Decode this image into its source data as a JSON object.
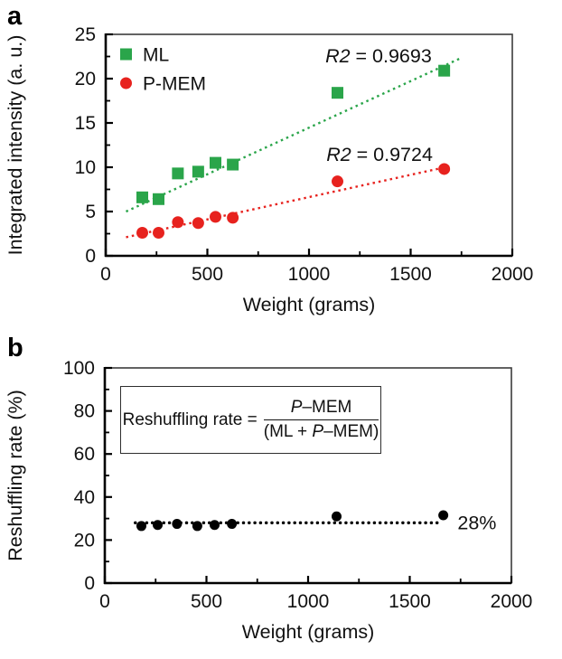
{
  "figure": {
    "background_color": "#ffffff",
    "panels": [
      {
        "label": "a"
      },
      {
        "label": "b"
      }
    ]
  },
  "colors": {
    "ml_green": "#2aa54a",
    "pmem_red": "#e7221e",
    "black": "#000000",
    "plot_border": "#3c3c3c"
  },
  "chart_data": [
    {
      "type": "scatter",
      "panel": "a",
      "title": "",
      "xlabel": "Weight (grams)",
      "ylabel": "Integrated intensity (a. u.)",
      "xlim": [
        0,
        2000
      ],
      "ylim": [
        0,
        25
      ],
      "xticks": [
        0,
        500,
        1000,
        1500,
        2000
      ],
      "xminor": [
        250,
        750,
        1250,
        1750
      ],
      "yticks": [
        0,
        5,
        10,
        15,
        20,
        25
      ],
      "yminor": [
        2.5,
        7.5,
        12.5,
        17.5,
        22.5
      ],
      "grid": false,
      "legend_position": "top-left-inside",
      "x": [
        180,
        260,
        355,
        455,
        540,
        625,
        1140,
        1665
      ],
      "series": [
        {
          "name": "ML",
          "marker": "square",
          "marker_size": 13,
          "color": "#2aa54a",
          "values": [
            6.6,
            6.4,
            9.3,
            9.5,
            10.5,
            10.3,
            18.4,
            20.9
          ],
          "r_squared": 0.9693,
          "trendline": {
            "style": "square-dot",
            "x": [
              100,
              1745
            ],
            "y": [
              5.0,
              22.3
            ]
          }
        },
        {
          "name": "P-MEM",
          "marker": "circle",
          "marker_size": 13,
          "color": "#e7221e",
          "values": [
            2.6,
            2.6,
            3.8,
            3.7,
            4.4,
            4.3,
            8.4,
            9.8
          ],
          "r_squared": 0.9724,
          "trendline": {
            "style": "square-dot",
            "x": [
              100,
              1690
            ],
            "y": [
              2.1,
              10.1
            ]
          }
        }
      ],
      "legend": {
        "entries": [
          "ML",
          "P-MEM"
        ]
      },
      "annotations": [
        {
          "italic": "R2",
          "text": " = 0.9693",
          "x": 1342,
          "y": 22.6,
          "anchor": "middle",
          "color": "#2aa54a"
        },
        {
          "italic": "R2",
          "text": " = 0.9724",
          "x": 1347,
          "y": 11.5,
          "anchor": "middle",
          "color": "#e7221e"
        }
      ]
    },
    {
      "type": "scatter",
      "panel": "b",
      "title": "",
      "xlabel": "Weight (grams)",
      "ylabel": "Reshuffling rate (%)",
      "xlim": [
        0,
        2000
      ],
      "ylim": [
        0,
        100
      ],
      "xticks": [
        0,
        500,
        1000,
        1500,
        2000
      ],
      "xminor": [
        250,
        750,
        1250,
        1750
      ],
      "yticks": [
        0,
        20,
        40,
        60,
        80,
        100
      ],
      "yminor": [
        10,
        30,
        50,
        70,
        90
      ],
      "grid": false,
      "x": [
        180,
        260,
        355,
        455,
        540,
        625,
        1140,
        1665
      ],
      "series": [
        {
          "name": "Reshuffling rate",
          "marker": "circle",
          "marker_size": 11,
          "color": "#000000",
          "values": [
            26.5,
            27,
            27.5,
            26.5,
            27,
            27.5,
            31,
            31.5
          ],
          "trendline": {
            "style": "round-dot",
            "x": [
              150,
              1645
            ],
            "y": [
              28,
              28
            ]
          }
        }
      ],
      "annotations": [
        {
          "text": "28%",
          "x": 1735,
          "y": 28.2,
          "anchor": "start",
          "color": "#000000"
        }
      ],
      "formula": {
        "lhs": "Reshuffling rate =",
        "numerator": [
          {
            "t": "P",
            "i": true
          },
          {
            "t": "–MEM",
            "i": false
          }
        ],
        "denominator": [
          {
            "t": "(ML + ",
            "i": false
          },
          {
            "t": "P",
            "i": true
          },
          {
            "t": "–MEM)",
            "i": false
          }
        ]
      }
    }
  ]
}
